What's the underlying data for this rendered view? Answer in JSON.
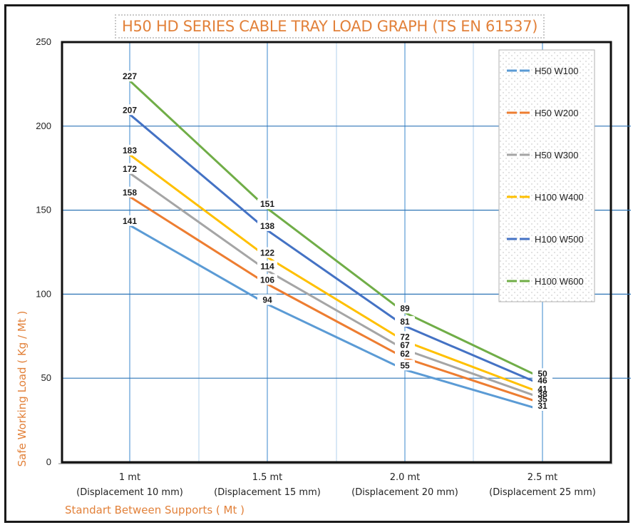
{
  "chart_data": {
    "type": "line",
    "title": "H50 HD SERIES CABLE TRAY LOAD GRAPH (TS EN 61537)",
    "xlabel": "Standart Between Supports ( Mt )",
    "ylabel": "Safe Working Load ( Kg / Mt )",
    "ylim": [
      0,
      250
    ],
    "yticks": [
      0,
      50,
      100,
      150,
      200,
      250
    ],
    "grid": true,
    "legend_position": "right",
    "categories": [
      [
        "1 mt",
        "(Displacement 10 mm)"
      ],
      [
        "1.5 mt",
        "(Displacement 15 mm)"
      ],
      [
        "2.0 mt",
        "(Displacement 20 mm)"
      ],
      [
        "2.5 mt",
        "(Displacement 25 mm)"
      ]
    ],
    "series": [
      {
        "name": "H50 W100",
        "color": "#5b9bd5",
        "values": [
          141,
          94,
          55,
          31
        ],
        "labels": [
          "141",
          "94",
          "55",
          "31"
        ]
      },
      {
        "name": "H50 W200",
        "color": "#ed7d31",
        "values": [
          158,
          106,
          62,
          35
        ],
        "labels": [
          "158",
          "106",
          "62",
          "35"
        ]
      },
      {
        "name": "H50 W300",
        "color": "#a5a5a5",
        "values": [
          172,
          114,
          67,
          38
        ],
        "labels": [
          "172",
          "114",
          "67",
          "38"
        ]
      },
      {
        "name": "H100 W400",
        "color": "#ffc000",
        "values": [
          183,
          122,
          72,
          41
        ],
        "labels": [
          "183",
          "122",
          "72",
          "41"
        ]
      },
      {
        "name": "H100 W500",
        "color": "#4472c4",
        "values": [
          207,
          138,
          81,
          46
        ],
        "labels": [
          "207",
          "138",
          "81",
          "46"
        ]
      },
      {
        "name": "H100 W600",
        "color": "#70ad47",
        "values": [
          227,
          151,
          89,
          50
        ],
        "labels": [
          "227",
          "151",
          "89",
          "50"
        ]
      }
    ]
  }
}
